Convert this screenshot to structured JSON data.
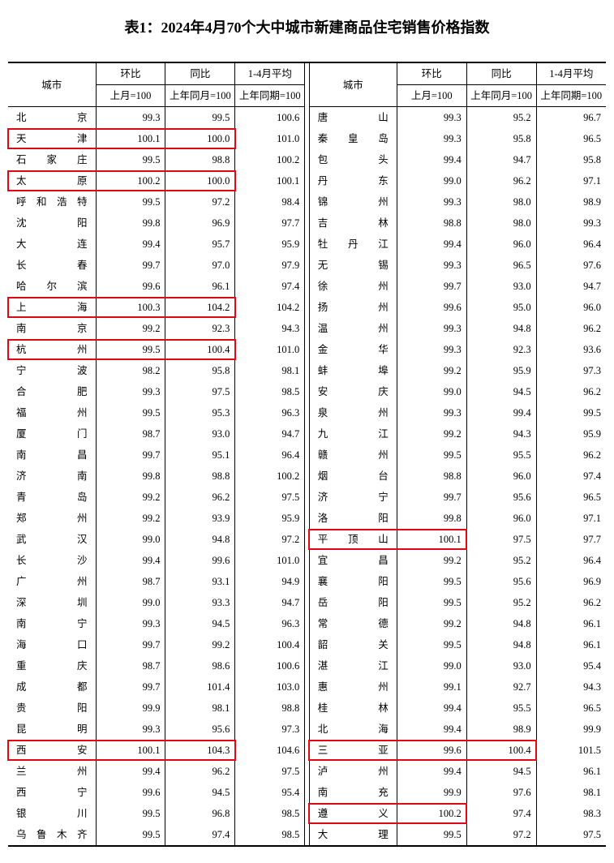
{
  "title": "表1：2024年4月70个大中城市新建商品住宅销售价格指数",
  "cols": {
    "city": "城市",
    "mom": "环比",
    "yoy": "同比",
    "avg": "1-4月平均",
    "mom_sub": "上月=100",
    "yoy_sub": "上年同月=100",
    "avg_sub": "上年同期=100"
  },
  "left": [
    {
      "city": "北　京",
      "mom": "99.3",
      "yoy": "99.5",
      "avg": "100.6"
    },
    {
      "city": "天　津",
      "mom": "100.1",
      "yoy": "100.0",
      "avg": "101.0"
    },
    {
      "city": "石家庄",
      "mom": "99.5",
      "yoy": "98.8",
      "avg": "100.2"
    },
    {
      "city": "太　原",
      "mom": "100.2",
      "yoy": "100.0",
      "avg": "100.1"
    },
    {
      "city": "呼和浩特",
      "mom": "99.5",
      "yoy": "97.2",
      "avg": "98.4"
    },
    {
      "city": "沈　阳",
      "mom": "99.8",
      "yoy": "96.9",
      "avg": "97.7"
    },
    {
      "city": "大　连",
      "mom": "99.4",
      "yoy": "95.7",
      "avg": "95.9"
    },
    {
      "city": "长　春",
      "mom": "99.7",
      "yoy": "97.0",
      "avg": "97.9"
    },
    {
      "city": "哈尔滨",
      "mom": "99.6",
      "yoy": "96.1",
      "avg": "97.4"
    },
    {
      "city": "上　海",
      "mom": "100.3",
      "yoy": "104.2",
      "avg": "104.2"
    },
    {
      "city": "南　京",
      "mom": "99.2",
      "yoy": "92.3",
      "avg": "94.3"
    },
    {
      "city": "杭　州",
      "mom": "99.5",
      "yoy": "100.4",
      "avg": "101.0"
    },
    {
      "city": "宁　波",
      "mom": "98.2",
      "yoy": "95.8",
      "avg": "98.1"
    },
    {
      "city": "合　肥",
      "mom": "99.3",
      "yoy": "97.5",
      "avg": "98.5"
    },
    {
      "city": "福　州",
      "mom": "99.5",
      "yoy": "95.3",
      "avg": "96.3"
    },
    {
      "city": "厦　门",
      "mom": "98.7",
      "yoy": "93.0",
      "avg": "94.7"
    },
    {
      "city": "南　昌",
      "mom": "99.7",
      "yoy": "95.1",
      "avg": "96.4"
    },
    {
      "city": "济　南",
      "mom": "99.8",
      "yoy": "98.8",
      "avg": "100.2"
    },
    {
      "city": "青　岛",
      "mom": "99.2",
      "yoy": "96.2",
      "avg": "97.5"
    },
    {
      "city": "郑　州",
      "mom": "99.2",
      "yoy": "93.9",
      "avg": "95.9"
    },
    {
      "city": "武　汉",
      "mom": "99.0",
      "yoy": "94.8",
      "avg": "97.2"
    },
    {
      "city": "长　沙",
      "mom": "99.4",
      "yoy": "99.6",
      "avg": "101.0"
    },
    {
      "city": "广　州",
      "mom": "98.7",
      "yoy": "93.1",
      "avg": "94.9"
    },
    {
      "city": "深　圳",
      "mom": "99.0",
      "yoy": "93.3",
      "avg": "94.7"
    },
    {
      "city": "南　宁",
      "mom": "99.3",
      "yoy": "94.5",
      "avg": "96.3"
    },
    {
      "city": "海　口",
      "mom": "99.7",
      "yoy": "99.2",
      "avg": "100.4"
    },
    {
      "city": "重　庆",
      "mom": "98.7",
      "yoy": "98.6",
      "avg": "100.6"
    },
    {
      "city": "成　都",
      "mom": "99.7",
      "yoy": "101.4",
      "avg": "103.0"
    },
    {
      "city": "贵　阳",
      "mom": "99.9",
      "yoy": "98.1",
      "avg": "98.8"
    },
    {
      "city": "昆　明",
      "mom": "99.3",
      "yoy": "95.6",
      "avg": "97.3"
    },
    {
      "city": "西　安",
      "mom": "100.1",
      "yoy": "104.3",
      "avg": "104.6"
    },
    {
      "city": "兰　州",
      "mom": "99.4",
      "yoy": "96.2",
      "avg": "97.5"
    },
    {
      "city": "西　宁",
      "mom": "99.6",
      "yoy": "94.5",
      "avg": "95.4"
    },
    {
      "city": "银　川",
      "mom": "99.5",
      "yoy": "96.8",
      "avg": "98.5"
    },
    {
      "city": "乌鲁木齐",
      "mom": "99.5",
      "yoy": "97.4",
      "avg": "98.5"
    }
  ],
  "right": [
    {
      "city": "唐　山",
      "mom": "99.3",
      "yoy": "95.2",
      "avg": "96.7"
    },
    {
      "city": "秦皇岛",
      "mom": "99.3",
      "yoy": "95.8",
      "avg": "96.5"
    },
    {
      "city": "包　头",
      "mom": "99.4",
      "yoy": "94.7",
      "avg": "95.8"
    },
    {
      "city": "丹　东",
      "mom": "99.0",
      "yoy": "96.2",
      "avg": "97.1"
    },
    {
      "city": "锦　州",
      "mom": "99.3",
      "yoy": "98.0",
      "avg": "98.9"
    },
    {
      "city": "吉　林",
      "mom": "98.8",
      "yoy": "98.0",
      "avg": "99.3"
    },
    {
      "city": "牡丹江",
      "mom": "99.4",
      "yoy": "96.0",
      "avg": "96.4"
    },
    {
      "city": "无　锡",
      "mom": "99.3",
      "yoy": "96.5",
      "avg": "97.6"
    },
    {
      "city": "徐　州",
      "mom": "99.7",
      "yoy": "93.0",
      "avg": "94.7"
    },
    {
      "city": "扬　州",
      "mom": "99.6",
      "yoy": "95.0",
      "avg": "96.0"
    },
    {
      "city": "温　州",
      "mom": "99.3",
      "yoy": "94.8",
      "avg": "96.2"
    },
    {
      "city": "金　华",
      "mom": "99.3",
      "yoy": "92.3",
      "avg": "93.6"
    },
    {
      "city": "蚌　埠",
      "mom": "99.2",
      "yoy": "95.9",
      "avg": "97.3"
    },
    {
      "city": "安　庆",
      "mom": "99.0",
      "yoy": "94.5",
      "avg": "96.2"
    },
    {
      "city": "泉　州",
      "mom": "99.3",
      "yoy": "99.4",
      "avg": "99.5"
    },
    {
      "city": "九　江",
      "mom": "99.2",
      "yoy": "94.3",
      "avg": "95.9"
    },
    {
      "city": "赣　州",
      "mom": "99.5",
      "yoy": "95.5",
      "avg": "96.2"
    },
    {
      "city": "烟　台",
      "mom": "98.8",
      "yoy": "96.0",
      "avg": "97.4"
    },
    {
      "city": "济　宁",
      "mom": "99.7",
      "yoy": "95.6",
      "avg": "96.5"
    },
    {
      "city": "洛　阳",
      "mom": "99.8",
      "yoy": "96.0",
      "avg": "97.1"
    },
    {
      "city": "平顶山",
      "mom": "100.1",
      "yoy": "97.5",
      "avg": "97.7"
    },
    {
      "city": "宜　昌",
      "mom": "99.2",
      "yoy": "95.2",
      "avg": "96.4"
    },
    {
      "city": "襄　阳",
      "mom": "99.5",
      "yoy": "95.6",
      "avg": "96.9"
    },
    {
      "city": "岳　阳",
      "mom": "99.5",
      "yoy": "95.2",
      "avg": "96.2"
    },
    {
      "city": "常　德",
      "mom": "99.2",
      "yoy": "94.8",
      "avg": "96.1"
    },
    {
      "city": "韶　关",
      "mom": "99.5",
      "yoy": "94.8",
      "avg": "96.1"
    },
    {
      "city": "湛　江",
      "mom": "99.0",
      "yoy": "93.0",
      "avg": "95.4"
    },
    {
      "city": "惠　州",
      "mom": "99.1",
      "yoy": "92.7",
      "avg": "94.3"
    },
    {
      "city": "桂　林",
      "mom": "99.4",
      "yoy": "95.5",
      "avg": "96.5"
    },
    {
      "city": "北　海",
      "mom": "99.4",
      "yoy": "98.9",
      "avg": "99.9"
    },
    {
      "city": "三　亚",
      "mom": "99.6",
      "yoy": "100.4",
      "avg": "101.5"
    },
    {
      "city": "泸　州",
      "mom": "99.4",
      "yoy": "94.5",
      "avg": "96.1"
    },
    {
      "city": "南　充",
      "mom": "99.9",
      "yoy": "97.6",
      "avg": "98.1"
    },
    {
      "city": "遵　义",
      "mom": "100.2",
      "yoy": "97.4",
      "avg": "98.3"
    },
    {
      "city": "大　理",
      "mom": "99.5",
      "yoy": "97.2",
      "avg": "97.5"
    }
  ],
  "highlights": [
    {
      "block": "left",
      "row": 1,
      "cols": [
        "city",
        "mom",
        "yoy"
      ]
    },
    {
      "block": "left",
      "row": 3,
      "cols": [
        "city",
        "mom",
        "yoy"
      ]
    },
    {
      "block": "left",
      "row": 9,
      "cols": [
        "city",
        "mom",
        "yoy"
      ]
    },
    {
      "block": "left",
      "row": 11,
      "cols": [
        "city",
        "mom",
        "yoy"
      ]
    },
    {
      "block": "left",
      "row": 30,
      "cols": [
        "city",
        "mom",
        "yoy"
      ]
    },
    {
      "block": "right",
      "row": 20,
      "cols": [
        "city",
        "mom"
      ]
    },
    {
      "block": "right",
      "row": 30,
      "cols": [
        "city",
        "mom",
        "yoy"
      ]
    },
    {
      "block": "right",
      "row": 33,
      "cols": [
        "city",
        "mom"
      ]
    }
  ],
  "highlight_color": "#e30613"
}
